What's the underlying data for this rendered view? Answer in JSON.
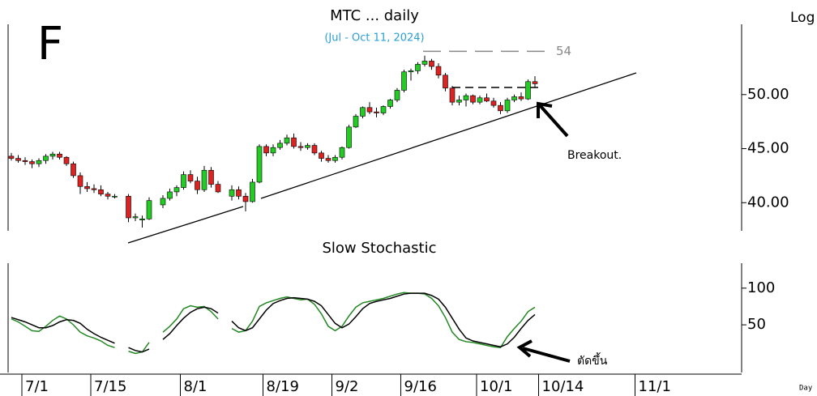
{
  "page_labels": {
    "letter": "F",
    "scale": "Log",
    "period": "Day"
  },
  "chart_data": [
    {
      "type": "candlestick",
      "title": "MTC ... daily",
      "subtitle": "(Jul - Oct 11, 2024)",
      "categories": [
        null,
        null,
        "7/1",
        null,
        null,
        null,
        null,
        null,
        null,
        null,
        null,
        null,
        "7/15",
        null,
        null,
        null,
        null,
        null,
        null,
        null,
        null,
        null,
        null,
        null,
        null,
        "8/1",
        null,
        null,
        null,
        null,
        null,
        null,
        null,
        null,
        null,
        null,
        null,
        "8/19",
        null,
        null,
        null,
        null,
        null,
        null,
        null,
        null,
        null,
        "9/2",
        null,
        null,
        null,
        null,
        null,
        null,
        null,
        null,
        null,
        "9/16",
        null,
        null,
        null,
        null,
        null,
        null,
        null,
        null,
        null,
        null,
        "10/1",
        null,
        null,
        null,
        null,
        null,
        null,
        null,
        null,
        "10/14",
        null,
        null,
        null,
        null,
        null,
        null,
        null,
        null,
        null,
        null,
        null,
        null,
        null,
        "11/1"
      ],
      "open": [
        44.3,
        44.1,
        43.9,
        43.8,
        43.6,
        43.9,
        44.3,
        44.5,
        44.2,
        43.6,
        42.5,
        41.5,
        41.3,
        41.2,
        40.8,
        40.6,
        null,
        40.6,
        38.6,
        38.4,
        38.5,
        null,
        39.8,
        40.4,
        41.0,
        41.4,
        42.6,
        42.0,
        41.2,
        43.0,
        41.7,
        null,
        40.6,
        41.2,
        40.6,
        40.1,
        41.9,
        45.2,
        44.6,
        45.1,
        45.5,
        46.0,
        45.2,
        45.1,
        45.3,
        44.6,
        44.1,
        43.9,
        44.2,
        45.1,
        47.0,
        48.0,
        48.8,
        48.4,
        48.3,
        48.9,
        49.5,
        50.4,
        52.1,
        52.2,
        52.8,
        53.1,
        52.6,
        51.8,
        50.6,
        49.3,
        49.5,
        49.9,
        49.3,
        49.7,
        49.4,
        49.0,
        48.5,
        49.5,
        49.8,
        49.6,
        51.2,
        null,
        null,
        null,
        null,
        null,
        null,
        null,
        null,
        null,
        null,
        null,
        null,
        null,
        null,
        null
      ],
      "high": [
        44.6,
        44.4,
        44.2,
        44.0,
        44.1,
        44.5,
        44.7,
        44.7,
        44.3,
        43.8,
        42.8,
        41.9,
        41.7,
        41.6,
        41.0,
        40.8,
        null,
        40.8,
        39.0,
        38.8,
        40.5,
        null,
        40.7,
        41.3,
        41.6,
        42.9,
        43.0,
        42.4,
        43.4,
        43.3,
        42.0,
        null,
        41.6,
        41.5,
        40.9,
        42.2,
        45.4,
        45.4,
        45.4,
        45.8,
        46.3,
        46.4,
        45.6,
        45.5,
        45.5,
        44.8,
        44.4,
        44.4,
        45.2,
        47.2,
        48.2,
        48.9,
        49.3,
        48.8,
        49.0,
        49.6,
        50.6,
        52.3,
        52.4,
        53.0,
        53.6,
        53.3,
        52.9,
        52.0,
        50.8,
        49.9,
        50.1,
        50.0,
        49.9,
        50.1,
        49.7,
        49.3,
        49.7,
        50.0,
        50.2,
        51.4,
        51.7,
        null,
        null,
        null,
        null,
        null,
        null,
        null,
        null,
        null,
        null,
        null,
        null,
        null,
        null,
        null
      ],
      "low": [
        43.9,
        43.7,
        43.5,
        43.2,
        43.3,
        43.6,
        44.0,
        44.0,
        43.4,
        42.3,
        40.8,
        41.0,
        40.9,
        40.6,
        40.3,
        40.4,
        null,
        38.2,
        38.3,
        37.7,
        38.4,
        null,
        39.5,
        40.2,
        40.6,
        41.2,
        41.8,
        40.8,
        41.0,
        41.4,
        40.9,
        null,
        40.2,
        40.3,
        39.2,
        40.0,
        41.8,
        44.3,
        44.3,
        44.9,
        45.3,
        45.0,
        44.8,
        44.9,
        44.4,
        43.8,
        43.7,
        43.7,
        44.0,
        45.0,
        46.9,
        47.8,
        48.2,
        47.9,
        48.1,
        48.7,
        49.3,
        50.2,
        51.3,
        51.9,
        52.6,
        52.3,
        51.5,
        50.3,
        49.0,
        49.0,
        48.9,
        49.1,
        49.1,
        49.3,
        48.8,
        48.2,
        48.3,
        49.3,
        49.4,
        49.5,
        50.7,
        null,
        null,
        null,
        null,
        null,
        null,
        null,
        null,
        null,
        null,
        null,
        null,
        null,
        null,
        null
      ],
      "close": [
        44.1,
        43.9,
        43.8,
        43.6,
        43.9,
        44.3,
        44.5,
        44.2,
        43.6,
        42.5,
        41.5,
        41.3,
        41.2,
        40.8,
        40.6,
        40.6,
        null,
        38.6,
        38.7,
        38.5,
        40.2,
        null,
        40.4,
        41.0,
        41.4,
        42.6,
        42.0,
        41.2,
        43.0,
        41.7,
        41.0,
        null,
        41.2,
        40.6,
        40.1,
        41.9,
        45.2,
        44.6,
        45.1,
        45.5,
        46.0,
        45.2,
        45.1,
        45.3,
        44.6,
        44.1,
        43.9,
        44.2,
        45.1,
        47.0,
        48.0,
        48.8,
        48.4,
        48.3,
        48.9,
        49.5,
        50.4,
        52.1,
        52.2,
        52.8,
        53.1,
        52.6,
        51.8,
        50.6,
        49.3,
        49.5,
        49.9,
        49.3,
        49.7,
        49.4,
        49.0,
        48.5,
        49.5,
        49.8,
        49.6,
        51.2,
        51.0,
        null,
        null,
        null,
        null,
        null,
        null,
        null,
        null,
        null,
        null,
        null,
        null,
        null,
        null,
        null
      ],
      "up_color": "#22cc22",
      "down_color": "#dd2222",
      "ylim": [
        37.4,
        58
      ],
      "yticks": [
        {
          "value": 40,
          "label": "40.00"
        },
        {
          "value": 45,
          "label": "45.00"
        },
        {
          "value": 50,
          "label": "50.00"
        }
      ],
      "level": 54,
      "level_color": "#888888",
      "annotations": [
        {
          "text": "Breakout."
        }
      ]
    },
    {
      "type": "line",
      "title": "Slow Stochastic",
      "series": [
        {
          "color": "#228822",
          "values": [
            58,
            54,
            48,
            42,
            41,
            48,
            56,
            62,
            58,
            50,
            40,
            35,
            32,
            28,
            22,
            19,
            null,
            14,
            11,
            13,
            26,
            null,
            40,
            48,
            58,
            72,
            76,
            74,
            75,
            68,
            58,
            null,
            45,
            40,
            42,
            55,
            75,
            80,
            83,
            86,
            88,
            86,
            84,
            85,
            78,
            65,
            48,
            42,
            48,
            62,
            74,
            80,
            82,
            84,
            86,
            89,
            92,
            94,
            93,
            93,
            92,
            86,
            76,
            60,
            40,
            30,
            27,
            26,
            24,
            22,
            20,
            19,
            34,
            45,
            55,
            68,
            74,
            null,
            null,
            null,
            null,
            null,
            null,
            null,
            null,
            null,
            null,
            null,
            null,
            null,
            null,
            null
          ]
        },
        {
          "color": "#000000",
          "values": [
            60,
            57,
            54,
            50,
            46,
            46,
            49,
            54,
            57,
            56,
            52,
            44,
            38,
            33,
            29,
            25,
            null,
            19,
            15,
            13,
            17,
            null,
            30,
            38,
            49,
            59,
            67,
            72,
            74,
            72,
            66,
            null,
            55,
            46,
            42,
            46,
            58,
            70,
            79,
            83,
            86,
            87,
            86,
            85,
            82,
            76,
            64,
            52,
            46,
            51,
            61,
            72,
            79,
            82,
            84,
            86,
            89,
            92,
            93,
            93,
            93,
            90,
            85,
            74,
            59,
            44,
            32,
            28,
            26,
            24,
            22,
            20,
            24,
            33,
            45,
            56,
            64,
            null,
            null,
            null,
            null,
            null,
            null,
            null,
            null,
            null,
            null,
            null,
            null,
            null,
            null,
            null
          ]
        }
      ],
      "ylim": [
        -15,
        134
      ],
      "yticks": [
        50,
        100
      ],
      "annotations": [
        {
          "text": "ตัดขึ้น"
        }
      ]
    }
  ]
}
